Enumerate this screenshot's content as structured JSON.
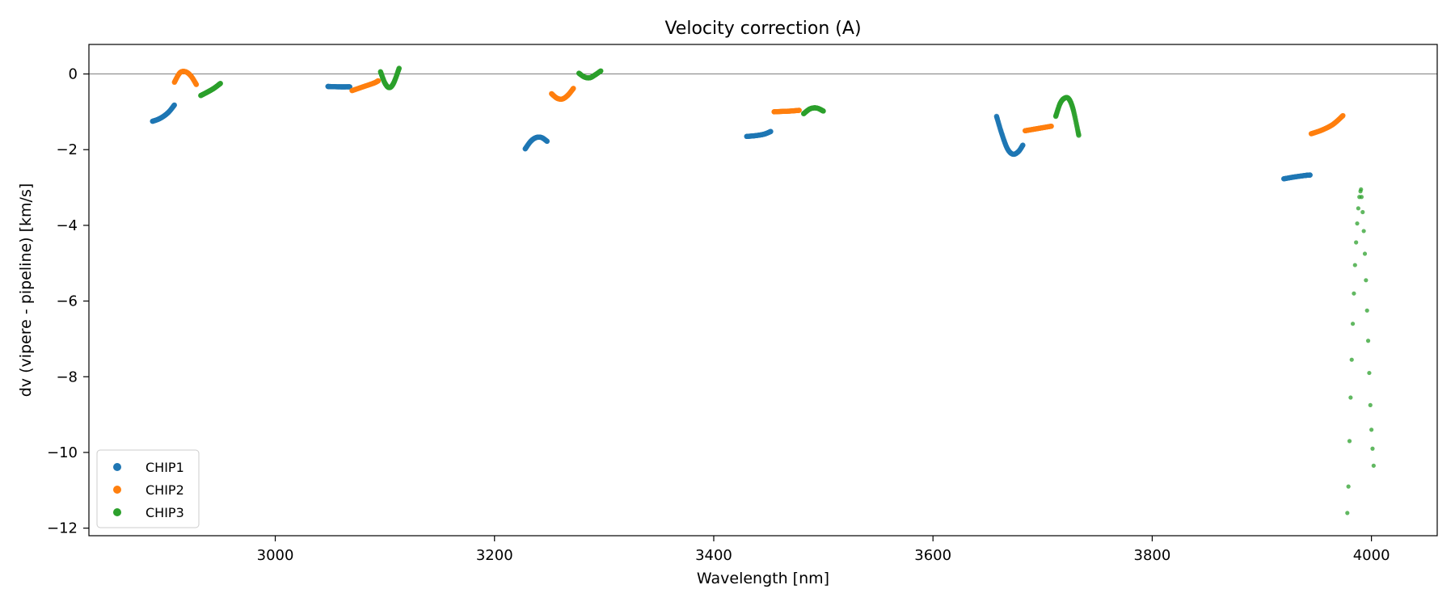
{
  "chart_data": {
    "type": "scatter",
    "title": "Velocity correction (A)",
    "xlabel": "Wavelength [nm]",
    "ylabel": "dv (vipere - pipeline) [km/s]",
    "xlim": [
      2830,
      4060
    ],
    "ylim": [
      -12.2,
      0.78
    ],
    "xticks": [
      3000,
      3200,
      3400,
      3600,
      3800,
      4000
    ],
    "yticks": [
      0,
      -2,
      -4,
      -6,
      -8,
      -10,
      -12
    ],
    "grid": false,
    "reference_line_y": 0,
    "legend": {
      "position": "lower-left",
      "entries": [
        "CHIP1",
        "CHIP2",
        "CHIP3"
      ]
    },
    "series": [
      {
        "name": "CHIP1",
        "color": "#1f77b4",
        "segments": [
          {
            "x": [
              2888,
              2893,
              2898,
              2903,
              2908
            ],
            "y": [
              -1.25,
              -1.2,
              -1.12,
              -1.0,
              -0.82
            ]
          },
          {
            "x": [
              3048,
              3058,
              3068
            ],
            "y": [
              -0.33,
              -0.34,
              -0.34
            ]
          },
          {
            "x": [
              3228,
              3233,
              3238,
              3243,
              3248
            ],
            "y": [
              -1.98,
              -1.78,
              -1.68,
              -1.68,
              -1.78
            ]
          },
          {
            "x": [
              3430,
              3438,
              3446,
              3452
            ],
            "y": [
              -1.65,
              -1.63,
              -1.59,
              -1.52
            ]
          },
          {
            "x": [
              3658,
              3663,
              3668,
              3673,
              3678,
              3682
            ],
            "y": [
              -1.12,
              -1.6,
              -1.98,
              -2.12,
              -2.05,
              -1.88
            ]
          },
          {
            "x": [
              3920,
              3930,
              3940,
              3944
            ],
            "y": [
              -2.77,
              -2.72,
              -2.68,
              -2.67
            ]
          }
        ]
      },
      {
        "name": "CHIP2",
        "color": "#ff7f0e",
        "segments": [
          {
            "x": [
              2908,
              2913,
              2918,
              2923,
              2928
            ],
            "y": [
              -0.22,
              0.03,
              0.06,
              -0.05,
              -0.28
            ]
          },
          {
            "x": [
              3070,
              3080,
              3090,
              3094
            ],
            "y": [
              -0.44,
              -0.34,
              -0.24,
              -0.18
            ]
          },
          {
            "x": [
              3252,
              3257,
              3262,
              3267,
              3272
            ],
            "y": [
              -0.52,
              -0.64,
              -0.66,
              -0.56,
              -0.38
            ]
          },
          {
            "x": [
              3455,
              3462,
              3470,
              3478
            ],
            "y": [
              -1.0,
              -0.99,
              -0.98,
              -0.96
            ]
          },
          {
            "x": [
              3684,
              3692,
              3700,
              3708
            ],
            "y": [
              -1.5,
              -1.46,
              -1.42,
              -1.38
            ]
          },
          {
            "x": [
              3945,
              3955,
              3965,
              3974
            ],
            "y": [
              -1.58,
              -1.48,
              -1.33,
              -1.1
            ]
          }
        ]
      },
      {
        "name": "CHIP3",
        "color": "#2ca02c",
        "segments": [
          {
            "x": [
              2932,
              2938,
              2944,
              2950
            ],
            "y": [
              -0.57,
              -0.48,
              -0.38,
              -0.25
            ]
          },
          {
            "x": [
              3096,
              3100,
              3104,
              3108,
              3113
            ],
            "y": [
              0.06,
              -0.24,
              -0.36,
              -0.24,
              0.15
            ]
          },
          {
            "x": [
              3277,
              3282,
              3287,
              3292,
              3297
            ],
            "y": [
              0.02,
              -0.08,
              -0.1,
              -0.02,
              0.08
            ]
          },
          {
            "x": [
              3482,
              3488,
              3494,
              3500
            ],
            "y": [
              -1.05,
              -0.92,
              -0.9,
              -0.98
            ]
          },
          {
            "x": [
              3712,
              3716,
              3720,
              3724,
              3728,
              3733
            ],
            "y": [
              -1.12,
              -0.78,
              -0.64,
              -0.66,
              -0.95,
              -1.62
            ]
          },
          {
            "sparse": true,
            "x": [
              3978,
              3979,
              3980,
              3981,
              3982,
              3983,
              3984,
              3985,
              3986,
              3987,
              3988,
              3989,
              3990,
              3990.5,
              3991,
              3992,
              3993,
              3994,
              3995,
              3996,
              3997,
              3998,
              3999,
              4000,
              4001,
              4002
            ],
            "y": [
              -11.6,
              -10.9,
              -9.7,
              -8.55,
              -7.55,
              -6.6,
              -5.8,
              -5.05,
              -4.45,
              -3.95,
              -3.55,
              -3.25,
              -3.1,
              -3.05,
              -3.25,
              -3.65,
              -4.15,
              -4.75,
              -5.45,
              -6.25,
              -7.05,
              -7.9,
              -8.75,
              -9.4,
              -9.9,
              -10.35
            ]
          }
        ]
      }
    ]
  }
}
